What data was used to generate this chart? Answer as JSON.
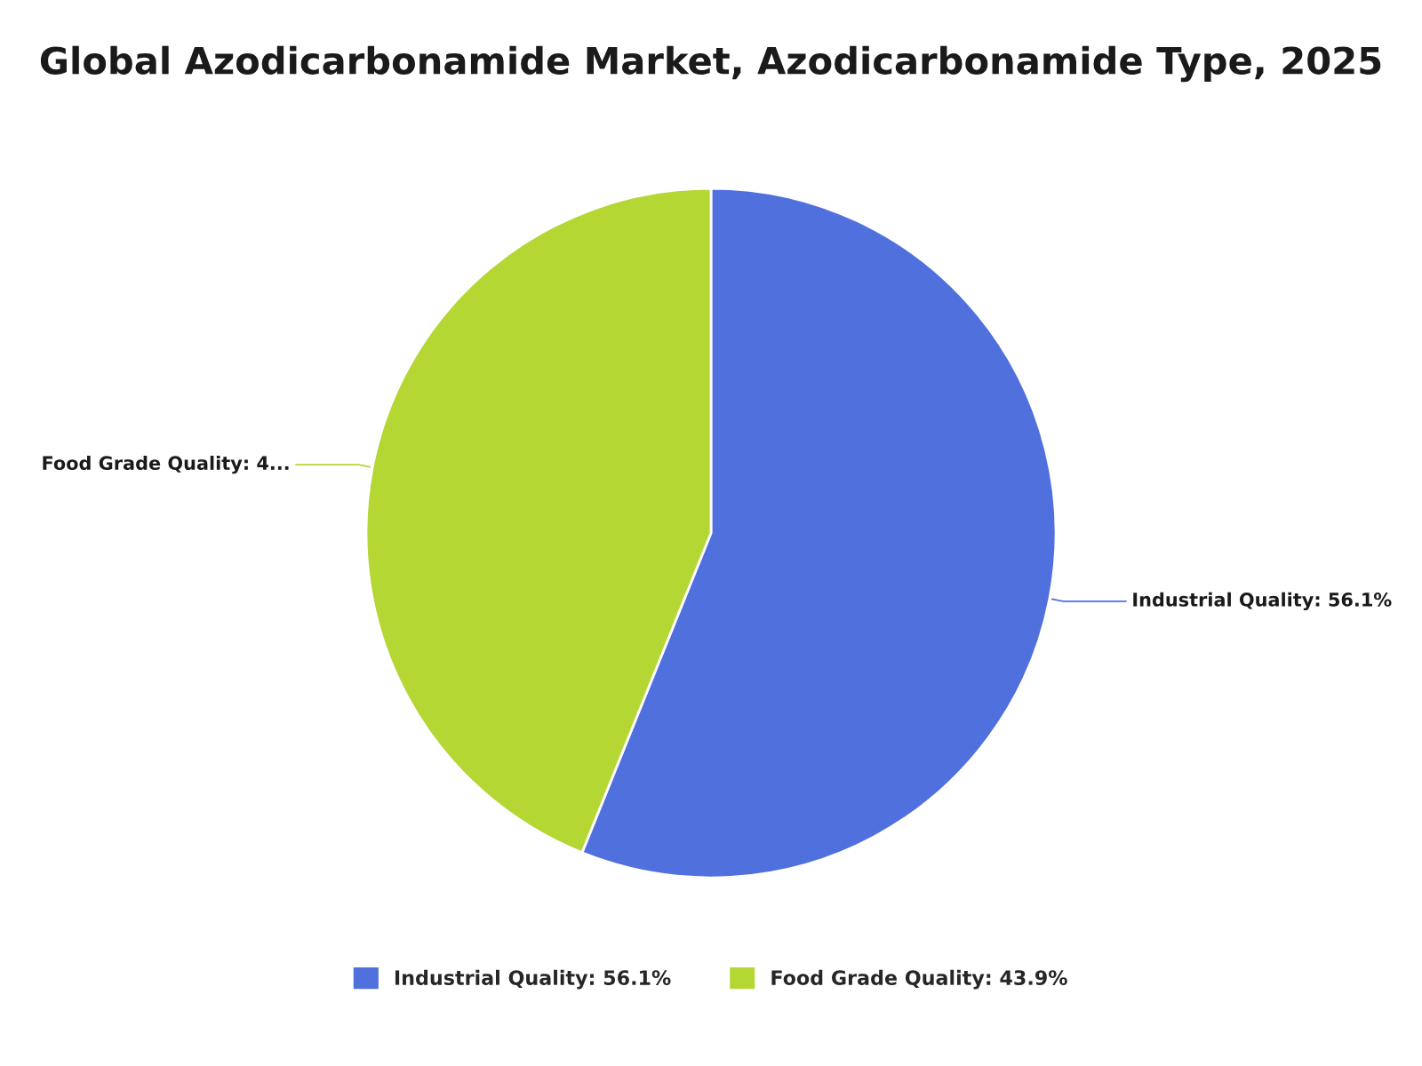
{
  "chart_data": {
    "type": "pie",
    "title": "Global Azodicarbonamide Market, Azodicarbonamide Type, 2025",
    "categories": [
      "Industrial Quality: 56.1%",
      "Food Grade Quality: 43.9%"
    ],
    "values": [
      56.1,
      43.9
    ],
    "colors": [
      "#5070de",
      "#b5d733"
    ],
    "value_labels": [
      "Industrial Quality: 56.1%",
      "Food Grade Quality: 4..."
    ],
    "legend": "bottom"
  }
}
